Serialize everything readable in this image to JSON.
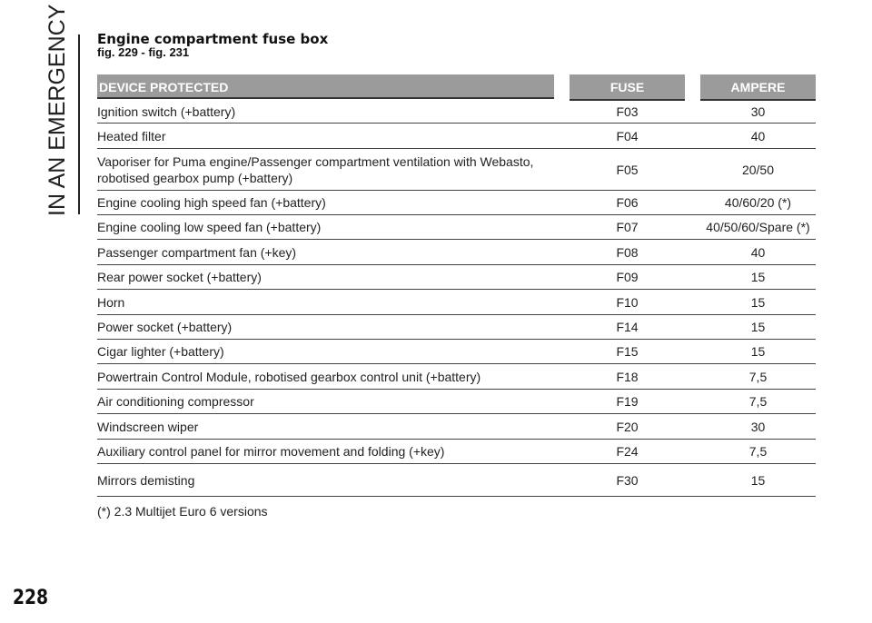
{
  "section_label": "IN AN EMERGENCY",
  "title": "Engine compartment fuse box",
  "subtitle": "fig. 229 - fig. 231",
  "table": {
    "headers": [
      "DEVICE PROTECTED",
      "FUSE",
      "AMPERE"
    ],
    "rows": [
      {
        "device": "Ignition switch (+battery)",
        "fuse": "F03",
        "ampere": "30"
      },
      {
        "device": "Heated filter",
        "fuse": "F04",
        "ampere": "40"
      },
      {
        "device": "Vaporiser for Puma engine/Passenger compartment ventilation with Webasto, robotised gearbox pump (+battery)",
        "fuse": "F05",
        "ampere": "20/50"
      },
      {
        "device": "Engine cooling high speed fan (+battery)",
        "fuse": "F06",
        "ampere": "40/60/20 (*)"
      },
      {
        "device": "Engine cooling low speed fan (+battery)",
        "fuse": "F07",
        "ampere": "40/50/60/Spare (*)"
      },
      {
        "device": "Passenger compartment fan (+key)",
        "fuse": "F08",
        "ampere": "40"
      },
      {
        "device": "Rear power socket (+battery)",
        "fuse": "F09",
        "ampere": "15"
      },
      {
        "device": "Horn",
        "fuse": "F10",
        "ampere": "15"
      },
      {
        "device": "Power socket (+battery)",
        "fuse": "F14",
        "ampere": "15"
      },
      {
        "device": "Cigar lighter (+battery)",
        "fuse": "F15",
        "ampere": "15"
      },
      {
        "device": "Powertrain Control Module, robotised gearbox control unit (+battery)",
        "fuse": "F18",
        "ampere": "7,5"
      },
      {
        "device": "Air conditioning compressor",
        "fuse": "F19",
        "ampere": "7,5"
      },
      {
        "device": "Windscreen wiper",
        "fuse": "F20",
        "ampere": "30"
      },
      {
        "device": "Auxiliary control panel for mirror movement and folding (+key)",
        "fuse": "F24",
        "ampere": "7,5"
      },
      {
        "device": "Mirrors demisting",
        "fuse": "F30",
        "ampere": "15"
      }
    ]
  },
  "footnote": "(*) 2.3 Multijet Euro 6 versions",
  "page_number": "228",
  "colors": {
    "header_bg": "#9b9b9b",
    "header_text": "#ffffff"
  }
}
